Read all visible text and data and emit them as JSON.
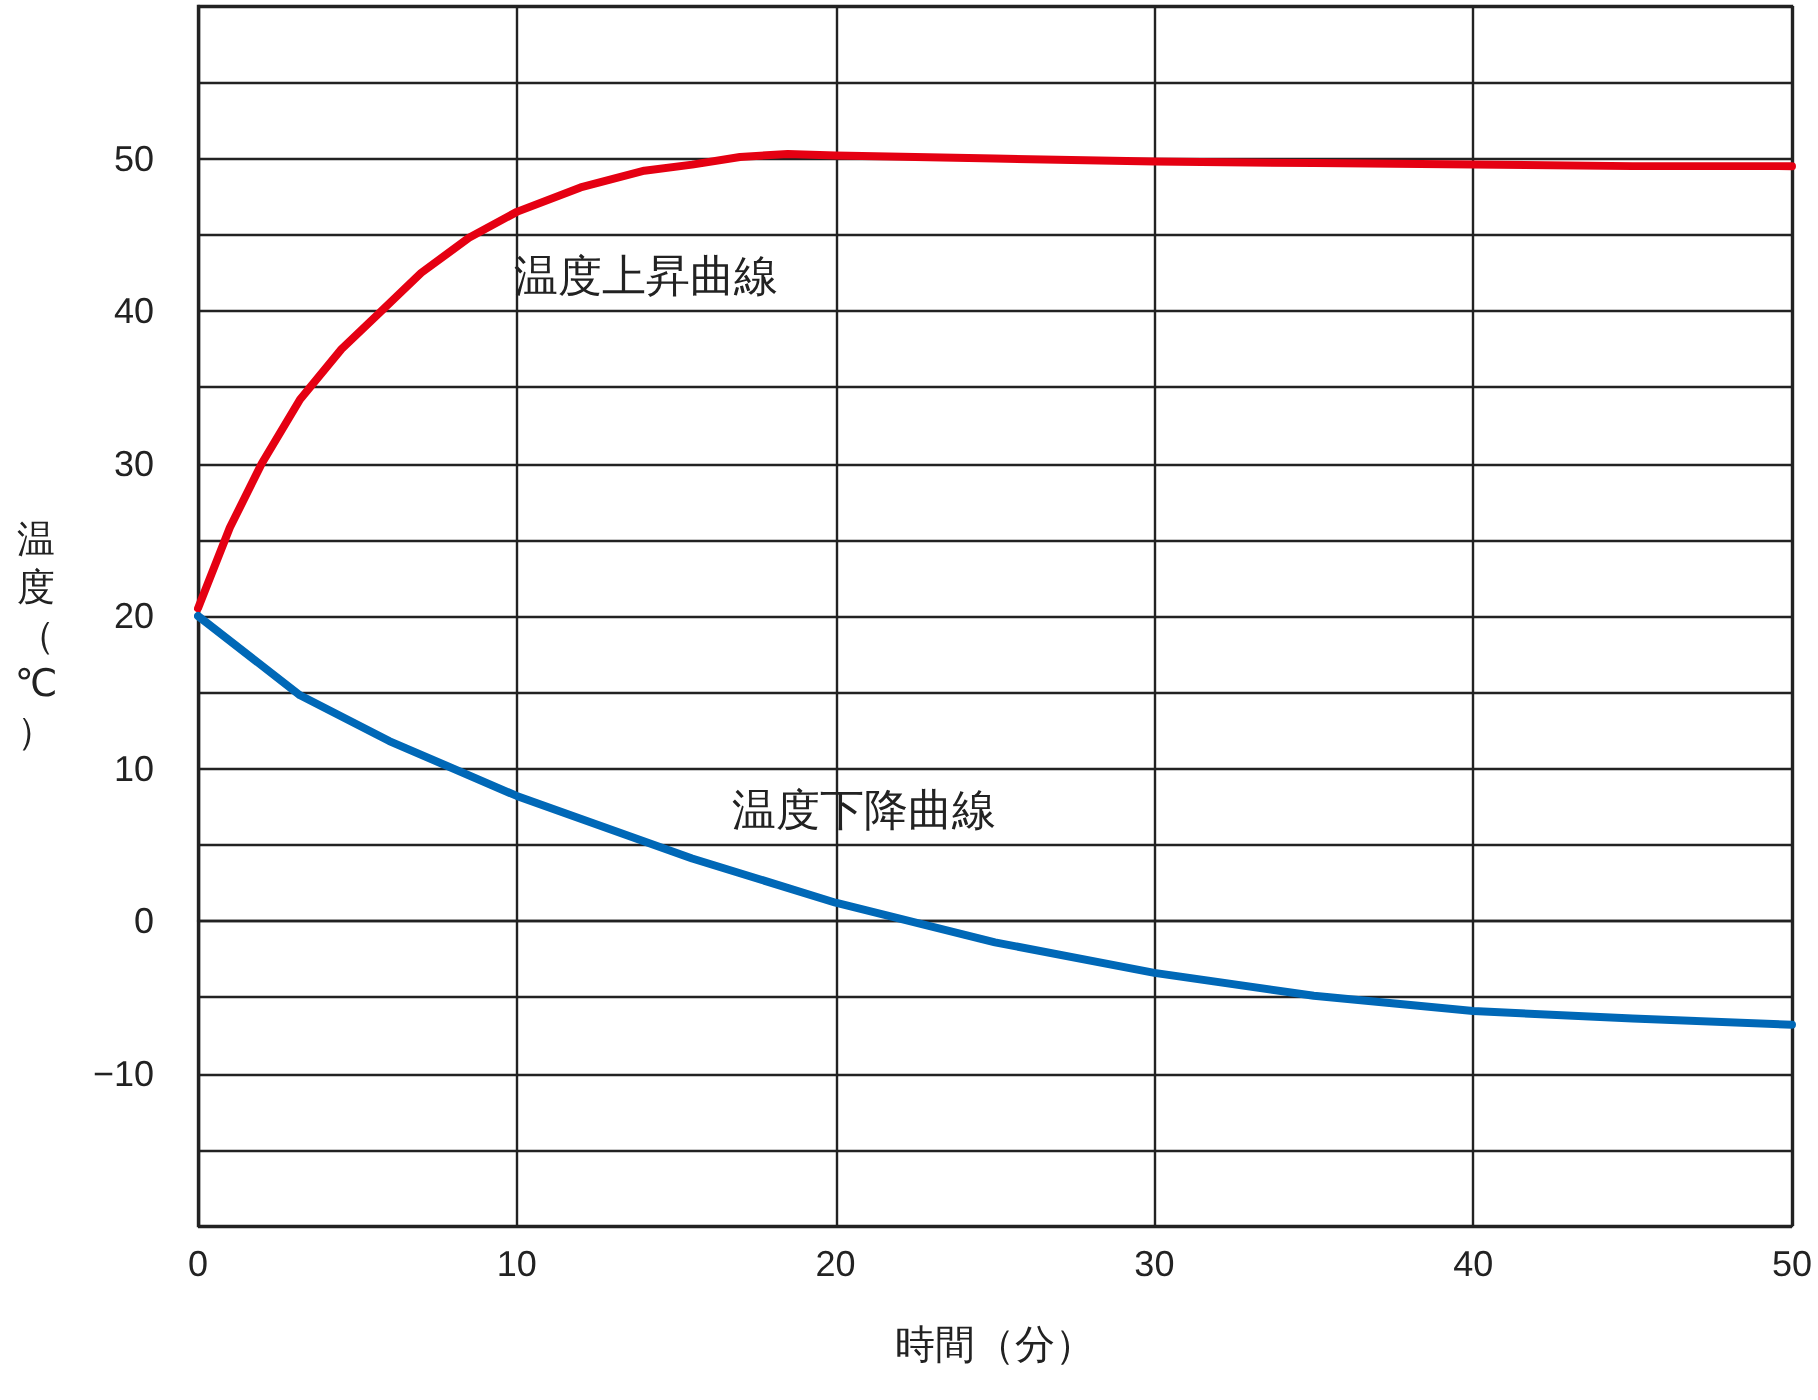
{
  "chart_data": {
    "type": "line",
    "xlabel": "時間（分）",
    "ylabel": "温度（℃）",
    "xlim": [
      0,
      50
    ],
    "xticks": [
      0,
      10,
      20,
      30,
      40,
      50
    ],
    "ylim": [
      -20,
      60
    ],
    "yticks": [
      {
        "value": -20,
        "label": null
      },
      {
        "value": -15,
        "label": null
      },
      -10,
      {
        "value": -5,
        "label": null
      },
      0,
      {
        "value": 5,
        "label": null
      },
      10,
      {
        "value": 15,
        "label": null
      },
      20,
      {
        "value": 25,
        "label": null
      },
      30,
      {
        "value": 35,
        "label": null
      },
      40,
      {
        "value": 45,
        "label": null
      },
      50,
      {
        "value": 55,
        "label": null
      },
      {
        "value": 60,
        "label": null
      }
    ],
    "grid": true,
    "marker": "none",
    "line_style": "solid",
    "series": [
      {
        "color": "#e50012",
        "x": [
          0,
          1,
          2,
          3.2,
          4.5,
          5.7,
          7,
          8.5,
          10,
          12,
          14,
          15.5,
          17,
          18.5,
          20,
          25,
          30,
          35,
          40,
          45,
          50
        ],
        "values": [
          20.5,
          25.8,
          30,
          34.2,
          37.5,
          39.9,
          42.5,
          44.8,
          46.5,
          48.1,
          49.2,
          49.6,
          50.1,
          50.3,
          50.2,
          50,
          49.8,
          49.7,
          49.6,
          49.5,
          49.5
        ]
      },
      {
        "color": "#0068b7",
        "x": [
          0,
          3.2,
          6,
          10,
          15.5,
          20,
          25,
          30,
          35,
          40,
          45,
          50
        ],
        "values": [
          20,
          14.8,
          11.8,
          8.2,
          4.1,
          1.2,
          -1.4,
          -3.4,
          -4.9,
          -5.9,
          -6.4,
          -6.8
        ]
      }
    ],
    "annotations": [
      "温度上昇曲線",
      "温度下降曲線"
    ]
  }
}
